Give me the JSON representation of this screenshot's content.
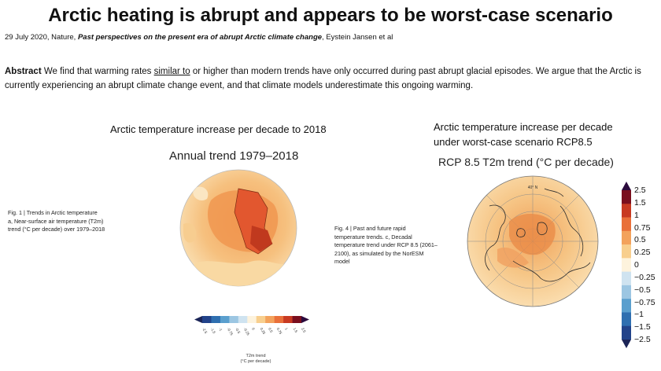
{
  "slide": {
    "title": "Arctic heating is abrupt and appears to be worst-case scenario",
    "citation_prefix": "29 July 2020, Nature, ",
    "citation_title": "Past perspectives on the present era of abrupt Arctic climate change",
    "citation_suffix": ", Eystein Jansen  et al",
    "abstract_label": "Abstract",
    "abstract_pre": " We find that warming rates ",
    "abstract_underlined": "similar to",
    "abstract_post": " or higher than modern trends have only occurred during past abrupt glacial episodes. We argue that the Arctic is currently experiencing an abrupt climate change event, and that climate models underestimate this ongoing warming."
  },
  "left_panel": {
    "heading": "Arctic temperature increase per decade to 2018",
    "figure_title": "Annual trend 1979–2018",
    "caption_line1": "Fig. 1 | Trends in Arctic temperature",
    "caption_line2": "a, Near-surface air temperature (T2m)",
    "caption_line3": "trend (°C per decade) over 1979–2018",
    "colorbar_ticks": [
      "-2.5",
      "-1.5",
      "-1",
      "-0.75",
      "-0.5",
      "-0.25",
      "0",
      "0.25",
      "0.5",
      "0.75",
      "1",
      "1.5",
      "2.5"
    ],
    "colorbar_unit_line1": "T2m trend",
    "colorbar_unit_line2": "(°C per decade)"
  },
  "right_panel": {
    "heading_line1": "Arctic temperature increase per decade",
    "heading_line2": "under worst-case scenario RCP8.5",
    "figure_title": "RCP 8.5 T2m trend (°C per decade)",
    "caption_line1": "Fig. 4 | Past and future rapid",
    "caption_line2": "temperature trends. c, Decadal",
    "caption_line3": "temperature trend under RCP 8.5 (2061–",
    "caption_line4": "2100), as simulated by the NorESM",
    "caption_line5": "model",
    "map_label": "40° N",
    "colorbar_labels": [
      "2.5",
      "1.5",
      "1",
      "0.75",
      "0.5",
      "0.25",
      "0",
      "−0.25",
      "−0.5",
      "−0.75",
      "−1",
      "−1.5",
      "−2.5"
    ]
  },
  "colors": {
    "scale": [
      "#2b0a3d",
      "#7a0f1e",
      "#c83a22",
      "#e9703a",
      "#f3a25c",
      "#f8cf8e",
      "#fdf3dd",
      "#cfe3f0",
      "#9cc6e2",
      "#5a9fce",
      "#2f6fb0",
      "#22438a",
      "#1b2557"
    ]
  }
}
